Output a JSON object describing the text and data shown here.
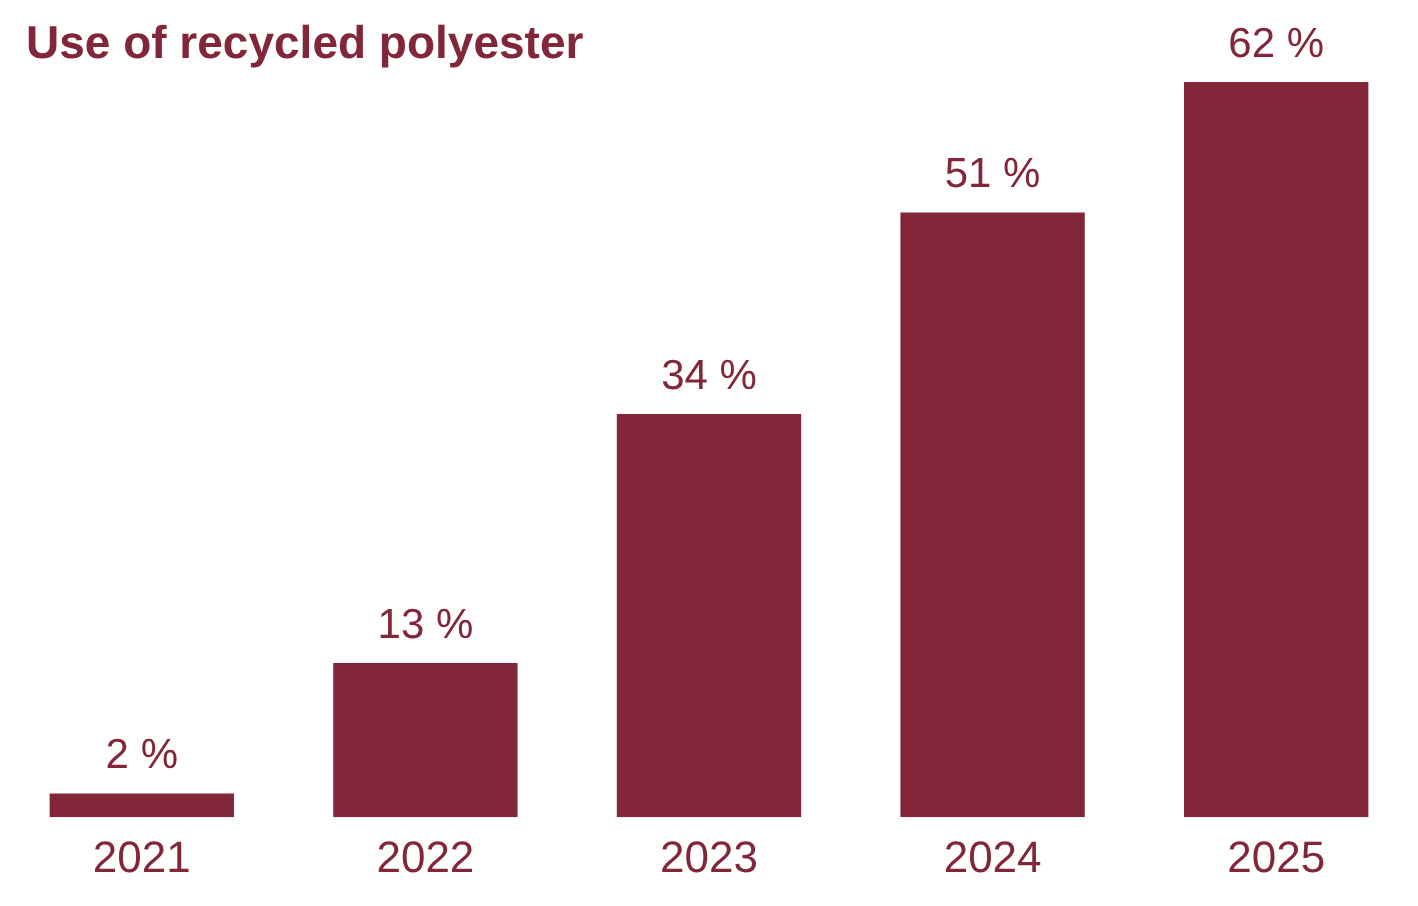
{
  "chart_data": {
    "type": "bar",
    "title": "Use of recycled polyester",
    "categories": [
      "2021",
      "2022",
      "2023",
      "2024",
      "2025"
    ],
    "values": [
      2,
      13,
      34,
      51,
      62
    ],
    "value_labels": [
      "2 %",
      "13 %",
      "34 %",
      "51 %",
      "62 %"
    ],
    "color": "#82263a",
    "grid": false,
    "legend": false
  }
}
